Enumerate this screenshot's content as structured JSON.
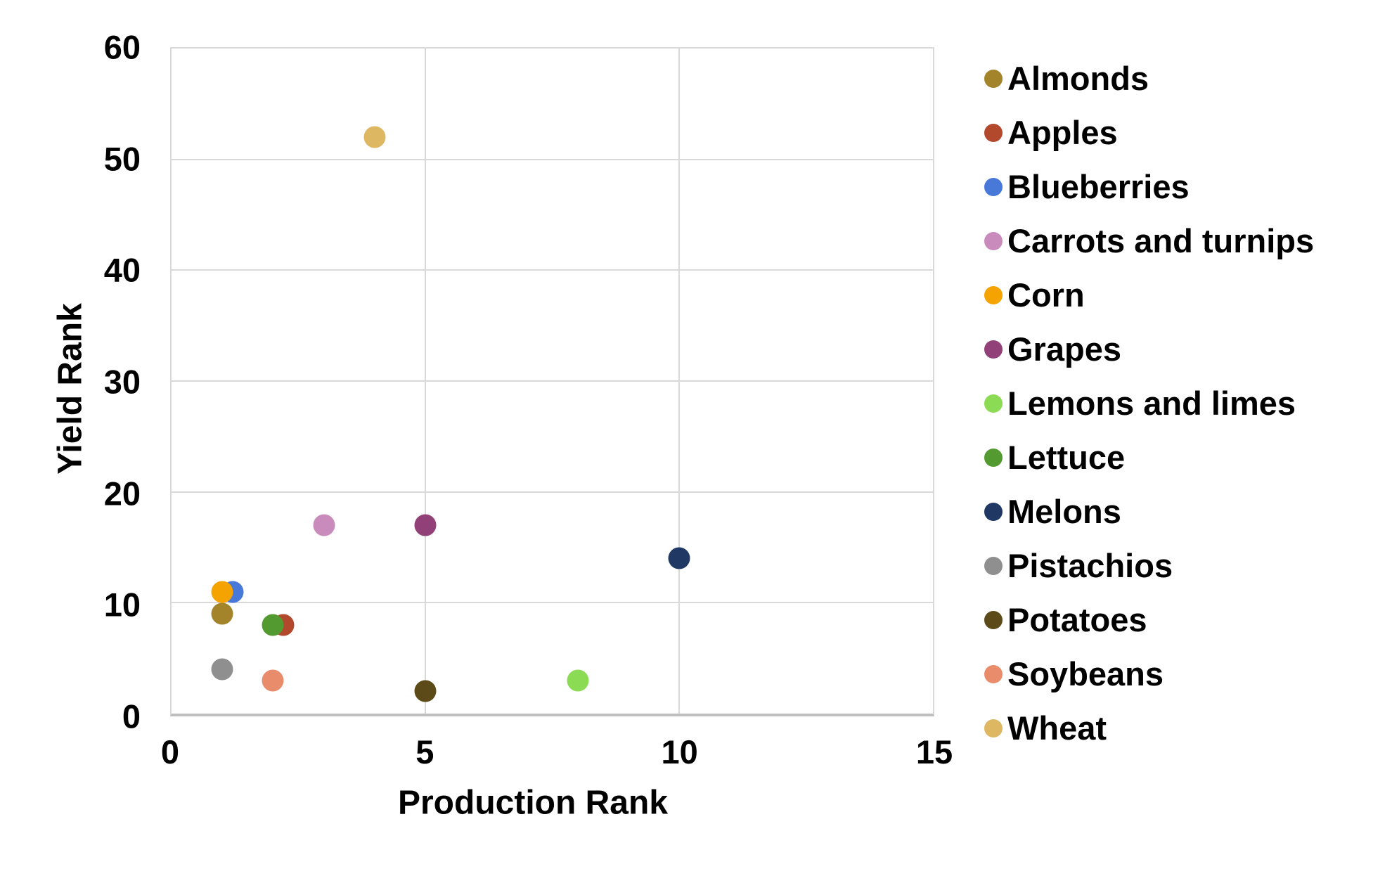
{
  "chart_data": {
    "type": "scatter",
    "xlabel": "Production Rank",
    "ylabel": "Yield Rank",
    "xlim": [
      0,
      15
    ],
    "ylim": [
      0,
      60
    ],
    "x_ticks": [
      0,
      5,
      10,
      15
    ],
    "y_ticks": [
      0,
      10,
      20,
      30,
      40,
      50,
      60
    ],
    "grid": true,
    "legend_position": "right",
    "series": [
      {
        "name": "Almonds",
        "color": "#A3842B",
        "x": 1,
        "y": 9
      },
      {
        "name": "Apples",
        "color": "#B2492C",
        "x": 2,
        "y": 8,
        "plot_dx": 0.2
      },
      {
        "name": "Blueberries",
        "color": "#4879D9",
        "x": 1,
        "y": 11,
        "plot_dx": 0.2
      },
      {
        "name": "Carrots and turnips",
        "color": "#C88BBC",
        "x": 3,
        "y": 17
      },
      {
        "name": "Corn",
        "color": "#F5A300",
        "x": 1,
        "y": 11
      },
      {
        "name": "Grapes",
        "color": "#914078",
        "x": 5,
        "y": 17
      },
      {
        "name": "Lemons and limes",
        "color": "#8BDB54",
        "x": 8,
        "y": 3
      },
      {
        "name": "Lettuce",
        "color": "#539B30",
        "x": 2,
        "y": 8
      },
      {
        "name": "Melons",
        "color": "#1F3864",
        "x": 10,
        "y": 14
      },
      {
        "name": "Pistachios",
        "color": "#8F8F8F",
        "x": 1,
        "y": 4
      },
      {
        "name": "Potatoes",
        "color": "#5C4A18",
        "x": 5,
        "y": 2
      },
      {
        "name": "Soybeans",
        "color": "#E98C6C",
        "x": 2,
        "y": 3
      },
      {
        "name": "Wheat",
        "color": "#DEB763",
        "x": 4,
        "y": 52
      }
    ],
    "colors": {
      "gridline": "#D9D9D9",
      "axis_line": "#BEBEBE",
      "text": "#000000",
      "background": "#FFFFFF"
    }
  }
}
